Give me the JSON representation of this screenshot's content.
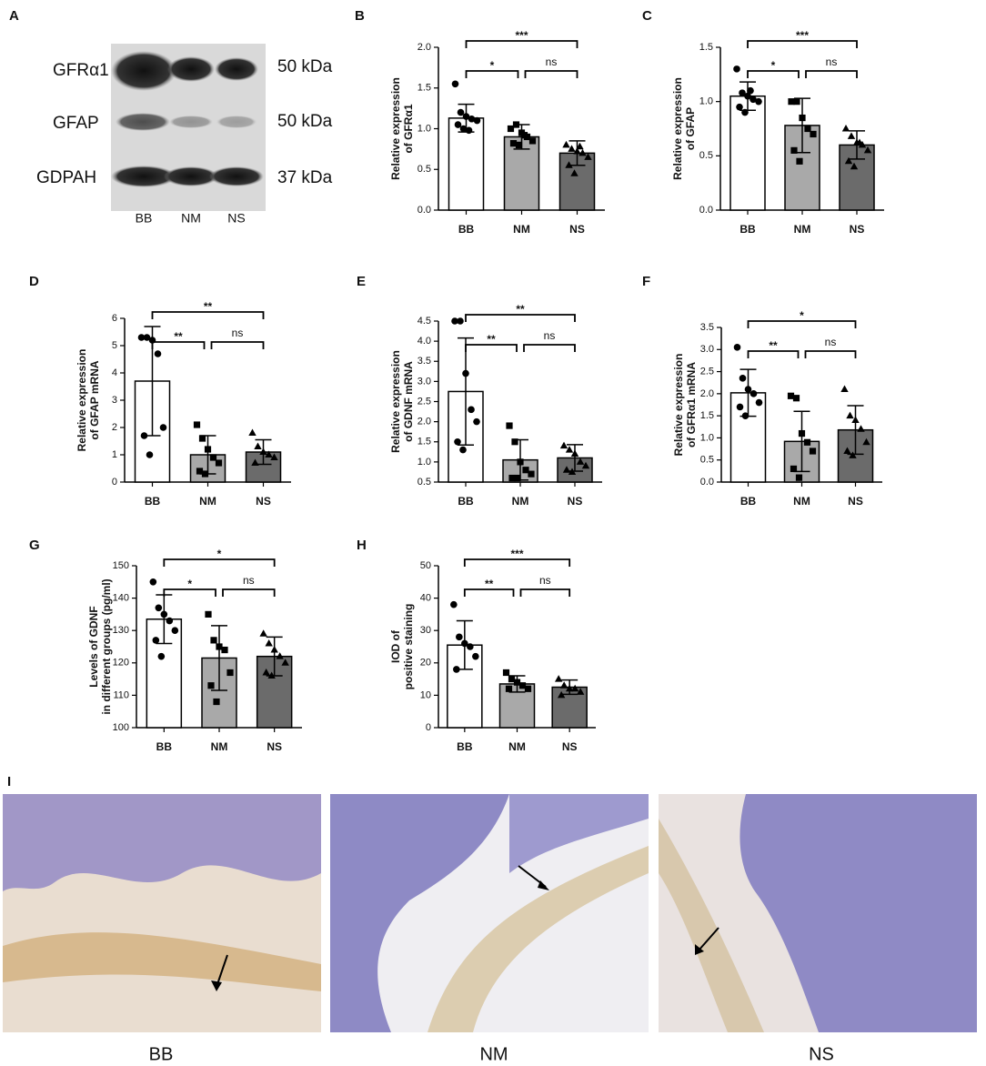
{
  "chart_data": [
    {
      "type": "bar",
      "panel": "B",
      "ylabel": [
        "Relative expression",
        "of GFRα1"
      ],
      "categories": [
        "BB",
        "NM",
        "NS"
      ],
      "colors": [
        "#ffffff",
        "#a9a9a9",
        "#6b6b6b"
      ],
      "values": [
        1.13,
        0.9,
        0.7
      ],
      "errors": [
        0.17,
        0.15,
        0.15
      ],
      "points": [
        [
          1.55,
          1.2,
          1.15,
          1.12,
          1.1,
          1.05,
          1.0,
          0.98
        ],
        [
          1.0,
          1.05,
          0.95,
          0.9,
          0.85,
          0.82,
          0.8,
          0.92
        ],
        [
          0.8,
          0.75,
          0.72,
          0.7,
          0.65,
          0.55,
          0.45,
          0.78
        ]
      ],
      "ylim": [
        0,
        2
      ],
      "yticks": [
        {
          "value": 0,
          "label": "0.0"
        },
        0.5,
        {
          "value": 1,
          "label": "1.0"
        },
        1.5,
        {
          "value": 2,
          "label": "2.0"
        }
      ],
      "significance": [
        {
          "groups": [
            "BB",
            "NS"
          ],
          "label": "***"
        },
        {
          "groups": [
            "BB",
            "NM"
          ],
          "label": "*"
        },
        {
          "groups": [
            "NM",
            "NS"
          ],
          "label": "ns"
        }
      ]
    },
    {
      "type": "bar",
      "panel": "C",
      "ylabel": [
        "Relative expression",
        "of GFAP"
      ],
      "categories": [
        "BB",
        "NM",
        "NS"
      ],
      "colors": [
        "#ffffff",
        "#a9a9a9",
        "#6b6b6b"
      ],
      "values": [
        1.05,
        0.78,
        0.6
      ],
      "errors": [
        0.13,
        0.25,
        0.13
      ],
      "points": [
        [
          1.3,
          1.08,
          1.05,
          1.02,
          1.0,
          0.95,
          0.9,
          1.1
        ],
        [
          1.0,
          1.0,
          0.85,
          0.75,
          0.7,
          0.55,
          0.45
        ],
        [
          0.75,
          0.68,
          0.62,
          0.6,
          0.55,
          0.45,
          0.4,
          0.62
        ]
      ],
      "ylim": [
        0,
        1.5
      ],
      "yticks": [
        {
          "value": 0,
          "label": "0.0"
        },
        0.5,
        {
          "value": 1,
          "label": "1.0"
        },
        1.5
      ],
      "significance": [
        {
          "groups": [
            "BB",
            "NS"
          ],
          "label": "***"
        },
        {
          "groups": [
            "BB",
            "NM"
          ],
          "label": "*"
        },
        {
          "groups": [
            "NM",
            "NS"
          ],
          "label": "ns"
        }
      ]
    },
    {
      "type": "bar",
      "panel": "D",
      "ylabel": [
        "Relative expression",
        "of GFAP mRNA"
      ],
      "categories": [
        "BB",
        "NM",
        "NS"
      ],
      "colors": [
        "#ffffff",
        "#a9a9a9",
        "#6b6b6b"
      ],
      "values": [
        3.7,
        1.0,
        1.1
      ],
      "errors": [
        2.0,
        0.7,
        0.45
      ],
      "points": [
        [
          5.3,
          5.3,
          5.2,
          4.7,
          2.0,
          1.7,
          1.0
        ],
        [
          2.1,
          1.6,
          1.2,
          0.9,
          0.7,
          0.4,
          0.3
        ],
        [
          1.8,
          1.3,
          1.1,
          1.0,
          0.9,
          0.7
        ]
      ],
      "ylim": [
        0,
        6
      ],
      "yticks": [
        0,
        1,
        2,
        3,
        4,
        5,
        6
      ],
      "significance": [
        {
          "groups": [
            "BB",
            "NS"
          ],
          "label": "**"
        },
        {
          "groups": [
            "BB",
            "NM"
          ],
          "label": "**"
        },
        {
          "groups": [
            "NM",
            "NS"
          ],
          "label": "ns"
        }
      ]
    },
    {
      "type": "bar",
      "panel": "E",
      "ylabel": [
        "Relative expression",
        "of GDNF mRNA"
      ],
      "categories": [
        "BB",
        "NM",
        "NS"
      ],
      "colors": [
        "#ffffff",
        "#a9a9a9",
        "#6b6b6b"
      ],
      "values": [
        2.75,
        1.05,
        1.1
      ],
      "errors": [
        1.33,
        0.5,
        0.33
      ],
      "points": [
        [
          4.5,
          4.5,
          3.2,
          2.3,
          2.0,
          1.5,
          1.3
        ],
        [
          1.9,
          1.5,
          1.0,
          0.8,
          0.7,
          0.6,
          0.6
        ],
        [
          1.4,
          1.3,
          1.2,
          1.0,
          0.9,
          0.8,
          0.75
        ]
      ],
      "ylim": [
        0.5,
        4.5
      ],
      "yticks": [
        0.5,
        {
          "value": 1,
          "label": "1.0"
        },
        1.5,
        {
          "value": 2,
          "label": "2.0"
        },
        2.5,
        {
          "value": 3,
          "label": "3.0"
        },
        3.5,
        {
          "value": 4,
          "label": "4.0"
        },
        4.5
      ],
      "significance": [
        {
          "groups": [
            "BB",
            "NS"
          ],
          "label": "**"
        },
        {
          "groups": [
            "BB",
            "NM"
          ],
          "label": "**"
        },
        {
          "groups": [
            "NM",
            "NS"
          ],
          "label": "ns"
        }
      ]
    },
    {
      "type": "bar",
      "panel": "F",
      "ylabel": [
        "Relative expression",
        "of GFRα1 mRNA"
      ],
      "categories": [
        "BB",
        "NM",
        "NS"
      ],
      "colors": [
        "#ffffff",
        "#a9a9a9",
        "#6b6b6b"
      ],
      "values": [
        2.02,
        0.92,
        1.18
      ],
      "errors": [
        0.53,
        0.68,
        0.55
      ],
      "points": [
        [
          3.05,
          2.35,
          2.1,
          2.0,
          1.8,
          1.7,
          1.5
        ],
        [
          1.95,
          1.9,
          1.1,
          0.9,
          0.7,
          0.3,
          0.1
        ],
        [
          2.1,
          1.5,
          1.4,
          1.2,
          0.9,
          0.7,
          0.6
        ]
      ],
      "ylim": [
        0,
        3.5
      ],
      "yticks": [
        {
          "value": 0,
          "label": "0.0"
        },
        0.5,
        {
          "value": 1,
          "label": "1.0"
        },
        1.5,
        {
          "value": 2,
          "label": "2.0"
        },
        2.5,
        {
          "value": 3,
          "label": "3.0"
        },
        3.5
      ],
      "significance": [
        {
          "groups": [
            "BB",
            "NS"
          ],
          "label": "*"
        },
        {
          "groups": [
            "BB",
            "NM"
          ],
          "label": "**"
        },
        {
          "groups": [
            "NM",
            "NS"
          ],
          "label": "ns"
        }
      ]
    },
    {
      "type": "bar",
      "panel": "G",
      "ylabel": [
        "Levels of GDNF",
        "in different groups (pg/ml)"
      ],
      "categories": [
        "BB",
        "NM",
        "NS"
      ],
      "colors": [
        "#ffffff",
        "#a9a9a9",
        "#6b6b6b"
      ],
      "values": [
        133.5,
        121.5,
        122
      ],
      "errors": [
        7.5,
        10,
        6
      ],
      "points": [
        [
          145,
          137,
          135,
          133,
          130,
          127,
          122
        ],
        [
          135,
          127,
          125,
          124,
          117,
          113,
          108
        ],
        [
          129,
          126,
          124,
          122,
          120,
          117,
          116
        ]
      ],
      "ylim": [
        100,
        150
      ],
      "yticks": [
        100,
        110,
        120,
        130,
        140,
        150
      ],
      "significance": [
        {
          "groups": [
            "BB",
            "NS"
          ],
          "label": "*"
        },
        {
          "groups": [
            "BB",
            "NM"
          ],
          "label": "*"
        },
        {
          "groups": [
            "NM",
            "NS"
          ],
          "label": "ns"
        }
      ]
    },
    {
      "type": "bar",
      "panel": "H",
      "ylabel": [
        "IOD of",
        "positive staining"
      ],
      "categories": [
        "BB",
        "NM",
        "NS"
      ],
      "colors": [
        "#ffffff",
        "#a9a9a9",
        "#6b6b6b"
      ],
      "values": [
        25.5,
        13.5,
        12.5
      ],
      "errors": [
        7.5,
        2.5,
        2.2
      ],
      "points": [
        [
          38,
          28,
          26,
          25,
          22,
          18
        ],
        [
          17,
          15,
          14,
          13,
          12,
          12
        ],
        [
          15,
          13,
          12,
          12,
          11,
          10
        ]
      ],
      "ylim": [
        0,
        50
      ],
      "yticks": [
        0,
        10,
        20,
        30,
        40,
        50
      ],
      "significance": [
        {
          "groups": [
            "BB",
            "NS"
          ],
          "label": "***"
        },
        {
          "groups": [
            "BB",
            "NM"
          ],
          "label": "**"
        },
        {
          "groups": [
            "NM",
            "NS"
          ],
          "label": "ns"
        }
      ]
    }
  ],
  "blot": {
    "panel": "A",
    "proteins": [
      {
        "name": "GFRα1",
        "size": "50 kDa"
      },
      {
        "name": "GFAP",
        "size": "50 kDa"
      },
      {
        "name": "GDPAH",
        "size": "37 kDa"
      }
    ],
    "lanes": [
      "BB",
      "NM",
      "NS"
    ]
  },
  "histology": {
    "panel": "I",
    "images": [
      "BB",
      "NM",
      "NS"
    ]
  }
}
